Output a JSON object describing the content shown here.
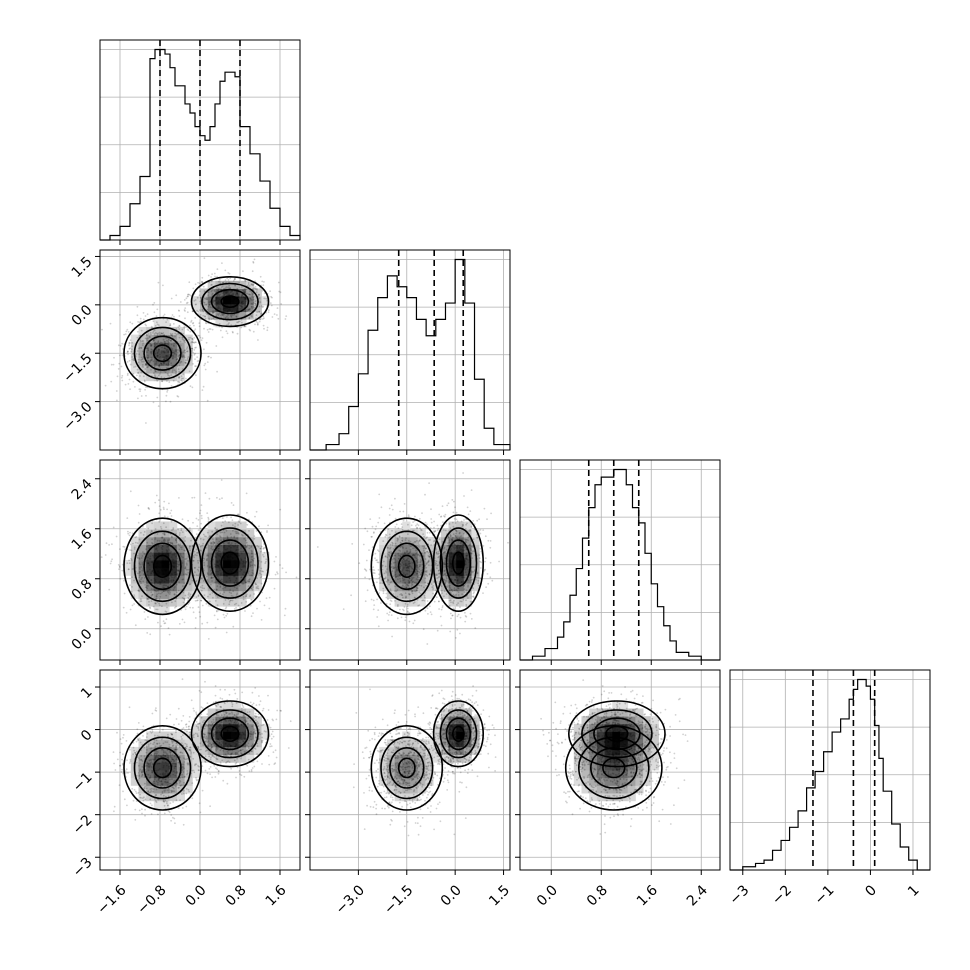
{
  "chart_data": {
    "type": "corner",
    "parameters": 4,
    "grid": true,
    "colors": {
      "ink": "#000000",
      "grid": "#b0b0b0",
      "background": "#ffffff"
    },
    "tick_labels": {
      "p0": [
        "−1.6",
        "−0.8",
        "0.0",
        "0.8",
        "1.6"
      ],
      "p1": [
        "−3.0",
        "−1.5",
        "0.0",
        "1.5"
      ],
      "p2": [
        "0.0",
        "0.8",
        "1.6",
        "2.4"
      ],
      "p3": [
        "−3",
        "−2",
        "−1",
        "0",
        "1"
      ]
    },
    "axes": {
      "p0": {
        "range": [
          -2.0,
          2.0
        ],
        "ticks": [
          -1.6,
          -0.8,
          0.0,
          0.8,
          1.6
        ]
      },
      "p1": {
        "range": [
          -4.5,
          1.7
        ],
        "ticks": [
          -3.0,
          -1.5,
          0.0,
          1.5
        ]
      },
      "p2": {
        "range": [
          -0.5,
          2.7
        ],
        "ticks": [
          0.0,
          0.8,
          1.6,
          2.4
        ]
      },
      "p3": {
        "range": [
          -3.3,
          1.4
        ],
        "ticks": [
          -3,
          -2,
          -1,
          0,
          1
        ]
      }
    },
    "marginals": [
      {
        "param": "p0",
        "bins": [
          -2.0,
          -1.8,
          -1.6,
          -1.4,
          -1.2,
          -1.0,
          -0.9,
          -0.8,
          -0.7,
          -0.6,
          -0.5,
          -0.4,
          -0.3,
          -0.2,
          -0.1,
          0.0,
          0.1,
          0.2,
          0.3,
          0.4,
          0.5,
          0.6,
          0.7,
          0.8,
          0.9,
          1.0,
          1.2,
          1.4,
          1.6,
          1.8,
          2.0
        ],
        "counts": [
          0,
          1,
          3,
          8,
          14,
          40,
          42,
          42,
          41,
          38,
          34,
          34,
          30,
          28,
          25,
          23,
          22,
          25,
          30,
          35,
          37,
          37,
          36,
          25,
          25,
          19,
          13,
          7,
          3,
          1
        ],
        "quantiles": [
          -0.8,
          0.0,
          0.8
        ]
      },
      {
        "param": "p1",
        "bins": [
          -4.5,
          -4.0,
          -3.6,
          -3.3,
          -3.0,
          -2.7,
          -2.4,
          -2.1,
          -1.8,
          -1.5,
          -1.2,
          -0.9,
          -0.6,
          -0.3,
          0.0,
          0.3,
          0.6,
          0.9,
          1.2,
          1.7
        ],
        "counts": [
          0,
          1,
          3,
          8,
          14,
          22,
          28,
          32,
          30,
          28,
          24,
          21,
          24,
          27,
          35,
          27,
          13,
          4,
          1
        ],
        "quantiles": [
          -1.75,
          -0.65,
          0.25
        ]
      },
      {
        "param": "p2",
        "bins": [
          -0.5,
          -0.3,
          -0.1,
          0.1,
          0.2,
          0.3,
          0.4,
          0.5,
          0.6,
          0.7,
          0.8,
          0.9,
          1.0,
          1.1,
          1.2,
          1.3,
          1.4,
          1.5,
          1.6,
          1.7,
          1.8,
          1.9,
          2.0,
          2.2,
          2.4,
          2.7
        ],
        "counts": [
          0,
          1,
          3,
          6,
          10,
          17,
          24,
          32,
          40,
          46,
          48,
          48,
          50,
          50,
          46,
          40,
          36,
          28,
          20,
          14,
          9,
          5,
          2,
          1,
          0
        ],
        "quantiles": [
          0.6,
          1.0,
          1.4
        ]
      },
      {
        "param": "p3",
        "bins": [
          -3.3,
          -3.0,
          -2.7,
          -2.5,
          -2.3,
          -2.1,
          -1.9,
          -1.7,
          -1.5,
          -1.3,
          -1.1,
          -0.9,
          -0.7,
          -0.5,
          -0.4,
          -0.3,
          -0.2,
          -0.1,
          0.0,
          0.1,
          0.2,
          0.3,
          0.5,
          0.7,
          0.9,
          1.1,
          1.4
        ],
        "counts": [
          0,
          1,
          2,
          3,
          6,
          9,
          13,
          18,
          25,
          30,
          36,
          42,
          46,
          52,
          55,
          58,
          58,
          56,
          52,
          44,
          34,
          24,
          14,
          7,
          3,
          0
        ],
        "quantiles": [
          -1.35,
          -0.4,
          0.1
        ]
      }
    ],
    "components": [
      {
        "weight": 0.5,
        "mean": [
          -0.75,
          -1.5,
          1.0,
          -0.9
        ],
        "std": [
          0.35,
          0.5,
          0.35,
          0.45
        ]
      },
      {
        "weight": 0.5,
        "mean": [
          0.6,
          0.1,
          1.05,
          -0.1
        ],
        "std": [
          0.35,
          0.35,
          0.35,
          0.35
        ]
      }
    ]
  }
}
